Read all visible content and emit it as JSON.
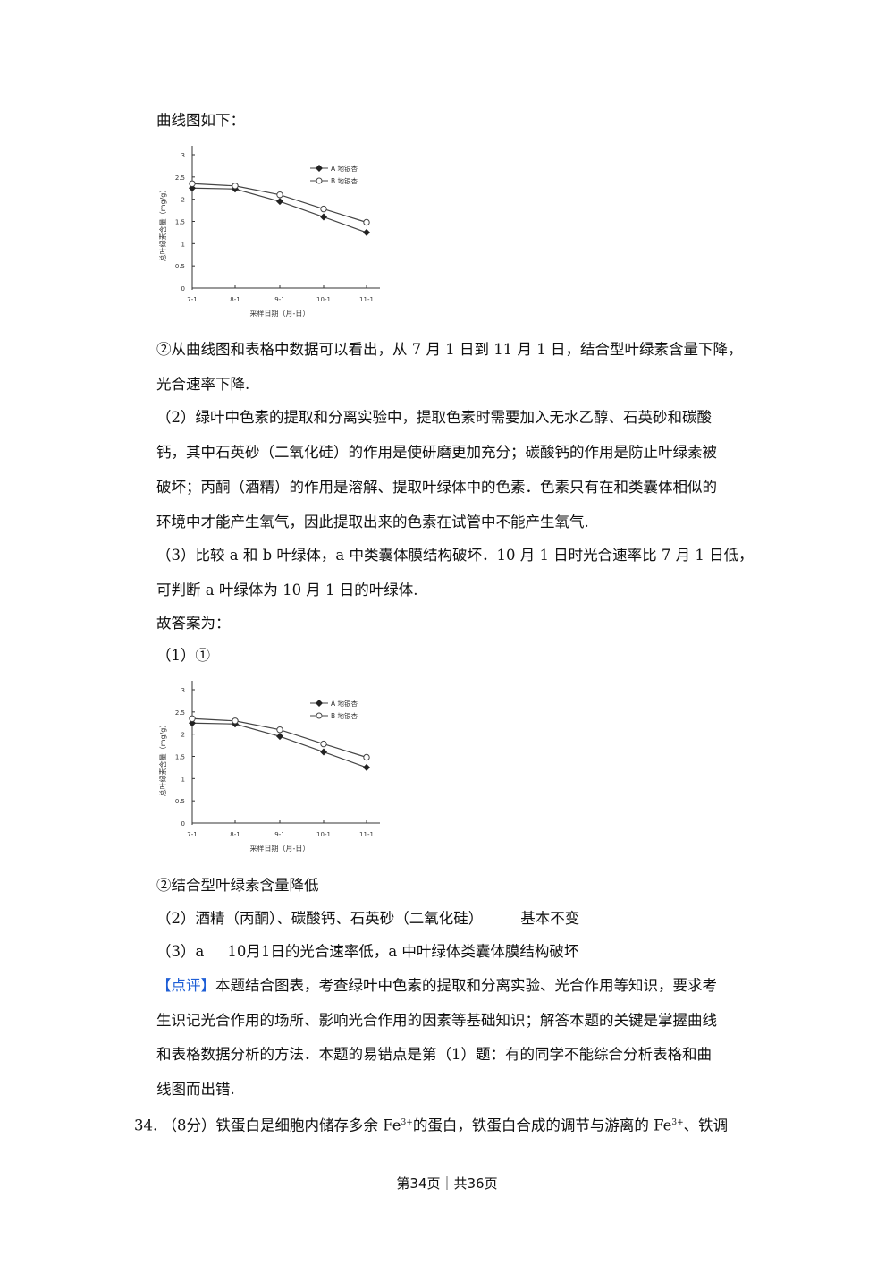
{
  "lines": {
    "l1": "曲线图如下：",
    "l2": "②从曲线图和表格中数据可以看出，从 7 月 1 日到 11 月 1 日，结合型叶绿素含量下降，",
    "l3": "光合速率下降.",
    "l4": "（2）绿叶中色素的提取和分离实验中，提取色素时需要加入无水乙醇、石英砂和碳酸",
    "l5": "钙，其中石英砂（二氧化硅）的作用是使研磨更加充分；碳酸钙的作用是防止叶绿素被",
    "l6": "破坏；丙酮（酒精）的作用是溶解、提取叶绿体中的色素．色素只有在和类囊体相似的",
    "l7": "环境中才能产生氧气，因此提取出来的色素在试管中不能产生氧气.",
    "l8": "（3）比较 a 和 b 叶绿体，a 中类囊体膜结构破坏．10 月 1 日时光合速率比 7 月 1 日低，",
    "l9": "可判断 a 叶绿体为 10 月 1 日的叶绿体.",
    "l10": "故答案为：",
    "l11": "（1）①",
    "l12": "②结合型叶绿素含量降低",
    "l13a": "（2）酒精（丙酮）、碳酸钙、石英砂（二氧化硅）",
    "l13b": "基本不变",
    "l14a": "（3）a",
    "l14b": "10月1日的光合速率低，a 中叶绿体类囊体膜结构破坏",
    "comment_tag": "【点评】",
    "l15": "本题结合图表，考查绿叶中色素的提取和分离实验、光合作用等知识，要求考",
    "l16": "生识记光合作用的场所、影响光合作用的因素等基础知识；解答本题的关键是掌握曲线",
    "l17": "和表格数据分析的方法．本题的易错点是第（1）题：有的同学不能综合分析表格和曲",
    "l18": "线图而出错.",
    "q34_a": "34. （8分）铁蛋白是细胞内储存多余 Fe",
    "q34_sup1": "3+",
    "q34_b": "的蛋白，铁蛋白合成的调节与游离的 Fe",
    "q34_sup2": "3+",
    "q34_c": "、铁调"
  },
  "footer": "第34页｜共36页",
  "colors": {
    "comment_tag": "#1f5fd6"
  },
  "chart_data": [
    {
      "type": "line",
      "xlabel": "采样日期（月-日）",
      "ylabel": "总叶绿素含量（mg/g）",
      "categories": [
        "7-1",
        "8-1",
        "9-1",
        "10-1",
        "11-1"
      ],
      "yticks": [
        "0",
        "0.5",
        "1",
        "1.5",
        "2",
        "2.5",
        "3"
      ],
      "ylim": [
        0,
        3
      ],
      "legend_position": "top-right",
      "series": [
        {
          "name": "A 地银杏",
          "marker": "filled-diamond",
          "values": [
            2.25,
            2.23,
            1.95,
            1.6,
            1.25
          ]
        },
        {
          "name": "B 地银杏",
          "marker": "open-circle",
          "values": [
            2.35,
            2.3,
            2.1,
            1.78,
            1.48
          ]
        }
      ]
    },
    {
      "type": "line",
      "xlabel": "采样日期（月-日）",
      "ylabel": "总叶绿素含量（mg/g）",
      "categories": [
        "7-1",
        "8-1",
        "9-1",
        "10-1",
        "11-1"
      ],
      "yticks": [
        "0",
        "0.5",
        "1",
        "1.5",
        "2",
        "2.5",
        "3"
      ],
      "ylim": [
        0,
        3
      ],
      "legend_position": "top-right",
      "series": [
        {
          "name": "A 地银杏",
          "marker": "filled-diamond",
          "values": [
            2.25,
            2.23,
            1.95,
            1.6,
            1.25
          ]
        },
        {
          "name": "B 地银杏",
          "marker": "open-circle",
          "values": [
            2.35,
            2.3,
            2.1,
            1.78,
            1.48
          ]
        }
      ]
    }
  ]
}
